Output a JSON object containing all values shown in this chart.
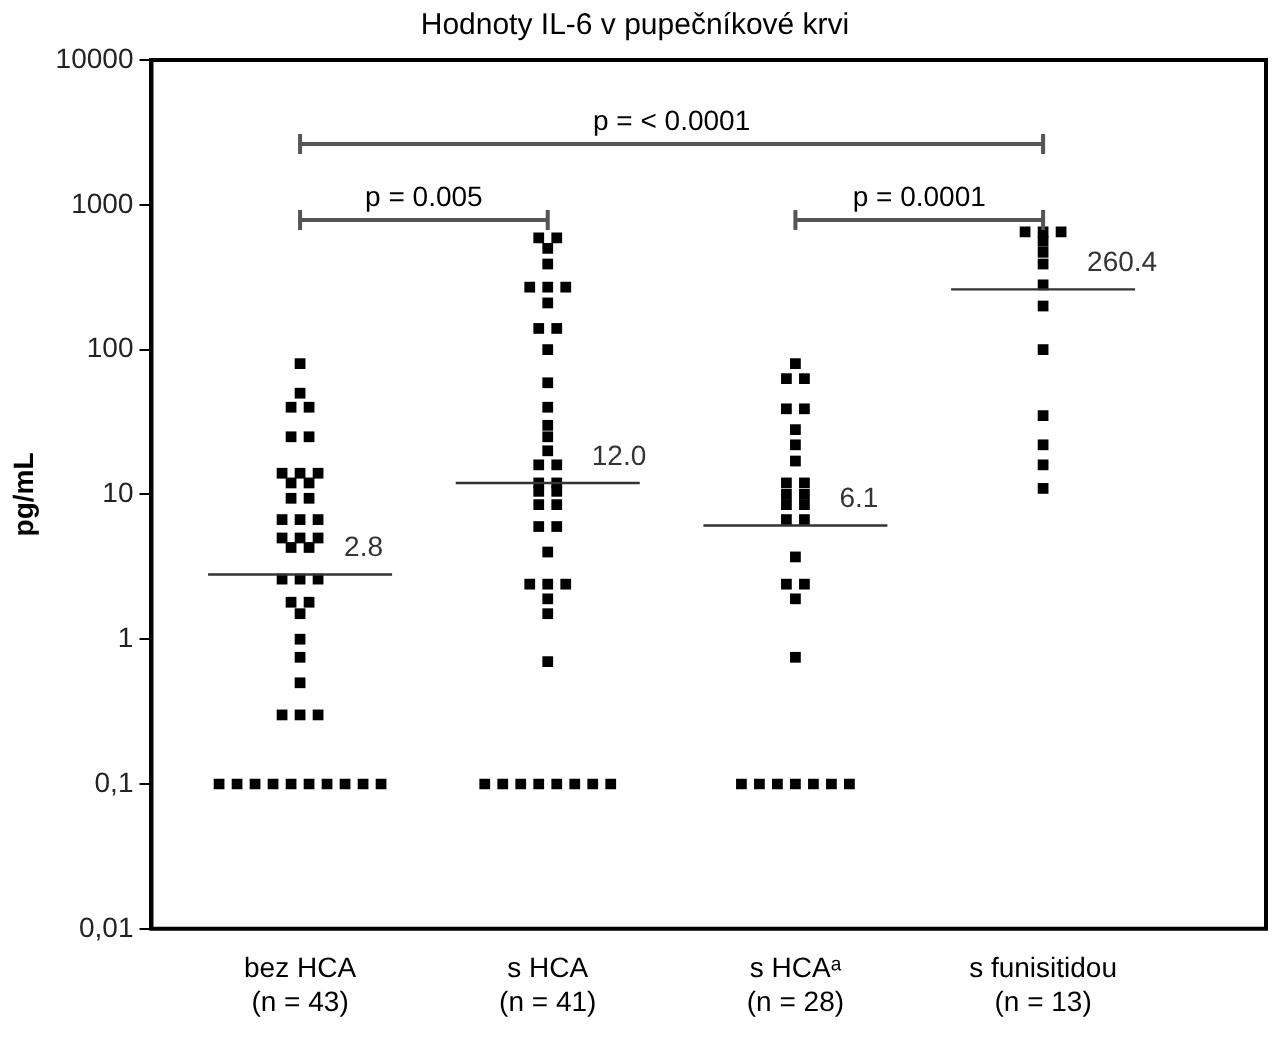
{
  "chart_data": {
    "type": "scatter",
    "title": "Hodnoty IL-6 v pupečníkové krvi",
    "ylabel": "pg/mL",
    "categories": [
      "bez HCA\n(n = 43)",
      "s HCA\n(n = 41)",
      "s HCAᵃ\n(n = 28)",
      "s funisitidou\n(n = 13)"
    ],
    "series": [
      {
        "color": "#000000",
        "x": [
          "bez HCA\n(n = 43)",
          "bez HCA\n(n = 43)",
          "bez HCA\n(n = 43)",
          "bez HCA\n(n = 43)",
          "bez HCA\n(n = 43)",
          "bez HCA\n(n = 43)",
          "bez HCA\n(n = 43)",
          "bez HCA\n(n = 43)",
          "bez HCA\n(n = 43)",
          "bez HCA\n(n = 43)",
          "bez HCA\n(n = 43)",
          "bez HCA\n(n = 43)",
          "bez HCA\n(n = 43)",
          "bez HCA\n(n = 43)",
          "bez HCA\n(n = 43)",
          "bez HCA\n(n = 43)",
          "bez HCA\n(n = 43)",
          "bez HCA\n(n = 43)",
          "bez HCA\n(n = 43)",
          "bez HCA\n(n = 43)",
          "bez HCA\n(n = 43)",
          "bez HCA\n(n = 43)",
          "bez HCA\n(n = 43)",
          "bez HCA\n(n = 43)",
          "bez HCA\n(n = 43)",
          "bez HCA\n(n = 43)",
          "bez HCA\n(n = 43)",
          "bez HCA\n(n = 43)",
          "bez HCA\n(n = 43)",
          "bez HCA\n(n = 43)",
          "bez HCA\n(n = 43)",
          "bez HCA\n(n = 43)",
          "bez HCA\n(n = 43)",
          "bez HCA\n(n = 43)",
          "bez HCA\n(n = 43)",
          "bez HCA\n(n = 43)",
          "bez HCA\n(n = 43)",
          "bez HCA\n(n = 43)",
          "bez HCA\n(n = 43)",
          "bez HCA\n(n = 43)",
          "bez HCA\n(n = 43)",
          "bez HCA\n(n = 43)",
          "bez HCA\n(n = 43)"
        ],
        "values": [
          80,
          50,
          40,
          40,
          25,
          25,
          14,
          14,
          14,
          12,
          12,
          9.4,
          9.4,
          6.7,
          6.7,
          6.7,
          5,
          5,
          5,
          4.3,
          4.3,
          2.6,
          2.6,
          2.6,
          1.8,
          1.8,
          1.5,
          1,
          0.75,
          0.5,
          0.3,
          0.3,
          0.3,
          0.1,
          0.1,
          0.1,
          0.1,
          0.1,
          0.1,
          0.1,
          0.1,
          0.1,
          0.1
        ]
      },
      {
        "color": "#000000",
        "x": [
          "s HCA\n(n = 41)",
          "s HCA\n(n = 41)",
          "s HCA\n(n = 41)",
          "s HCA\n(n = 41)",
          "s HCA\n(n = 41)",
          "s HCA\n(n = 41)",
          "s HCA\n(n = 41)",
          "s HCA\n(n = 41)",
          "s HCA\n(n = 41)",
          "s HCA\n(n = 41)",
          "s HCA\n(n = 41)",
          "s HCA\n(n = 41)",
          "s HCA\n(n = 41)",
          "s HCA\n(n = 41)",
          "s HCA\n(n = 41)",
          "s HCA\n(n = 41)",
          "s HCA\n(n = 41)",
          "s HCA\n(n = 41)",
          "s HCA\n(n = 41)",
          "s HCA\n(n = 41)",
          "s HCA\n(n = 41)",
          "s HCA\n(n = 41)",
          "s HCA\n(n = 41)",
          "s HCA\n(n = 41)",
          "s HCA\n(n = 41)",
          "s HCA\n(n = 41)",
          "s HCA\n(n = 41)",
          "s HCA\n(n = 41)",
          "s HCA\n(n = 41)",
          "s HCA\n(n = 41)",
          "s HCA\n(n = 41)",
          "s HCA\n(n = 41)",
          "s HCA\n(n = 41)",
          "s HCA\n(n = 41)",
          "s HCA\n(n = 41)",
          "s HCA\n(n = 41)",
          "s HCA\n(n = 41)",
          "s HCA\n(n = 41)",
          "s HCA\n(n = 41)",
          "s HCA\n(n = 41)",
          "s HCA\n(n = 41)"
        ],
        "values": [
          590,
          590,
          500,
          390,
          270,
          270,
          270,
          210,
          140,
          140,
          100,
          59,
          40,
          30,
          25,
          20,
          16,
          16,
          12,
          12,
          10.5,
          10.5,
          8.5,
          8.5,
          6,
          6,
          4,
          2.4,
          2.4,
          2.4,
          1.9,
          1.5,
          0.7,
          0.1,
          0.1,
          0.1,
          0.1,
          0.1,
          0.1,
          0.1,
          0.1
        ]
      },
      {
        "color": "#000000",
        "x": [
          "s HCAᵃ\n(n = 28)",
          "s HCAᵃ\n(n = 28)",
          "s HCAᵃ\n(n = 28)",
          "s HCAᵃ\n(n = 28)",
          "s HCAᵃ\n(n = 28)",
          "s HCAᵃ\n(n = 28)",
          "s HCAᵃ\n(n = 28)",
          "s HCAᵃ\n(n = 28)",
          "s HCAᵃ\n(n = 28)",
          "s HCAᵃ\n(n = 28)",
          "s HCAᵃ\n(n = 28)",
          "s HCAᵃ\n(n = 28)",
          "s HCAᵃ\n(n = 28)",
          "s HCAᵃ\n(n = 28)",
          "s HCAᵃ\n(n = 28)",
          "s HCAᵃ\n(n = 28)",
          "s HCAᵃ\n(n = 28)",
          "s HCAᵃ\n(n = 28)",
          "s HCAᵃ\n(n = 28)",
          "s HCAᵃ\n(n = 28)",
          "s HCAᵃ\n(n = 28)",
          "s HCAᵃ\n(n = 28)",
          "s HCAᵃ\n(n = 28)",
          "s HCAᵃ\n(n = 28)",
          "s HCAᵃ\n(n = 28)",
          "s HCAᵃ\n(n = 28)",
          "s HCAᵃ\n(n = 28)",
          "s HCAᵃ\n(n = 28)"
        ],
        "values": [
          80,
          63,
          63,
          39,
          39,
          28,
          22,
          17,
          12,
          12,
          10,
          10,
          8.5,
          8.5,
          6.7,
          6.7,
          3.7,
          2.4,
          2.4,
          1.9,
          0.75,
          0.1,
          0.1,
          0.1,
          0.1,
          0.1,
          0.1,
          0.1
        ]
      },
      {
        "color": "#000000",
        "x": [
          "s funisitidou\n(n = 13)",
          "s funisitidou\n(n = 13)",
          "s funisitidou\n(n = 13)",
          "s funisitidou\n(n = 13)",
          "s funisitidou\n(n = 13)",
          "s funisitidou\n(n = 13)",
          "s funisitidou\n(n = 13)",
          "s funisitidou\n(n = 13)",
          "s funisitidou\n(n = 13)",
          "s funisitidou\n(n = 13)",
          "s funisitidou\n(n = 13)",
          "s funisitidou\n(n = 13)",
          "s funisitidou\n(n = 13)"
        ],
        "values": [
          650,
          650,
          650,
          560,
          470,
          390,
          280,
          200,
          100,
          35,
          22,
          16,
          11
        ]
      }
    ],
    "log": "y",
    "ylim": [
      0.01,
      10000
    ],
    "yticks": [
      {
        "value": 0.01,
        "label": "0,01"
      },
      {
        "value": 0.1,
        "label": "0,1"
      },
      1,
      10,
      100,
      1000,
      10000
    ],
    "marker": "square",
    "grid": false,
    "legend": false,
    "annotations": [
      {
        "text": "2.8",
        "x": "bez HCA\n(n = 43)",
        "y": 2.8
      },
      {
        "text": "12.0",
        "x": "s HCA\n(n = 41)",
        "y": 12.0
      },
      {
        "text": "6.1",
        "x": "s HCAᵃ\n(n = 28)",
        "y": 6.1
      },
      {
        "text": "260.4",
        "x": "s funisitidou\n(n = 13)",
        "y": 260.4
      },
      "p = < 0.0001",
      "p = 0.005",
      "p = 0.0001"
    ]
  }
}
